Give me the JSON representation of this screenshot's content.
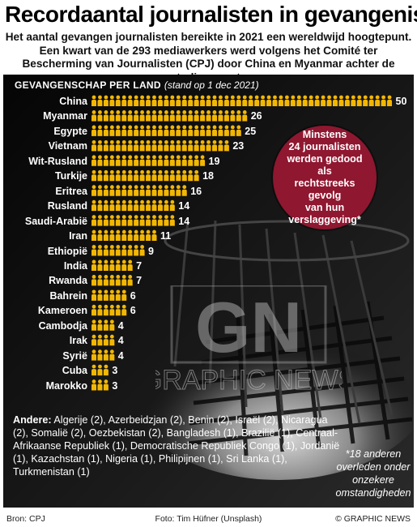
{
  "title": "Recordaantal journalisten in gevangenis",
  "subtitle": "Het aantal gevangen journalisten bereikte in 2021 een wereldwijd hoogtepunt. Een kwart van de 293 mediawerkers werd volgens het Comité ter Bescherming van Journalisten (CPJ) door China en Myanmar achter de tralies gezet",
  "chart_data": {
    "type": "bar",
    "title": "GEVANGENSCHAP PER LAND",
    "note": "(stand op 1 dec 2021)",
    "categories": [
      "China",
      "Myanmar",
      "Egypte",
      "Vietnam",
      "Wit-Rusland",
      "Turkije",
      "Eritrea",
      "Rusland",
      "Saudi-Arabië",
      "Iran",
      "Ethiopië",
      "India",
      "Rwanda",
      "Bahrein",
      "Kameroen",
      "Cambodja",
      "Irak",
      "Syrië",
      "Cuba",
      "Marokko"
    ],
    "values": [
      50,
      26,
      25,
      23,
      19,
      18,
      16,
      14,
      14,
      11,
      9,
      7,
      7,
      6,
      6,
      4,
      4,
      4,
      3,
      3
    ],
    "icon": "person-icon",
    "icon_color": "#f2b705"
  },
  "badge": {
    "lines": [
      "Minstens",
      "24 journalisten",
      "werden gedood als",
      "rechtstreeks gevolg",
      "van hun",
      "verslaggeving*"
    ],
    "color": "#8f1730"
  },
  "others": {
    "label": "Andere:",
    "text": "Algerije (2), Azerbeidzjan (2), Benin (2), Israël (2), Nicaragua (2), Somalië (2), Oezbekistan (2), Bangladesh (1), Brazilië (1), Centraal-Afrikaanse Republiek (1), Democratische Republiek Congo (1), Jordanië (1), Kazachstan (1), Nigeria (1), Philipijnen (1), Sri Lanka (1), Turkmenistan (1)"
  },
  "footnote": "*18 anderen overleden onder onzekere omstandigheden",
  "footer": {
    "source": "Bron: CPJ",
    "photo": "Foto: Tim Hüfner (Unsplash)",
    "copyright": "© GRAPHIC NEWS"
  },
  "watermark": {
    "logo": "GN",
    "text": "GRAPHIC NEWS"
  }
}
